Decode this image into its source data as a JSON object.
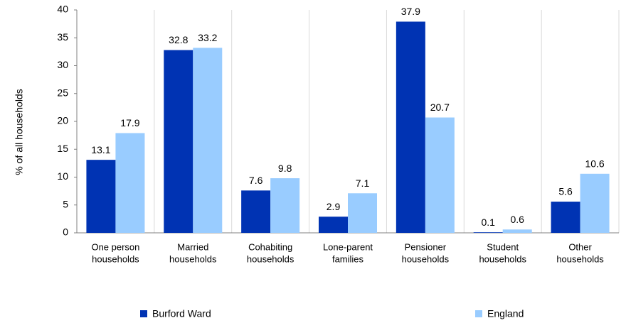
{
  "chart_data": {
    "type": "bar",
    "y_label": "% of all households",
    "categories": [
      [
        "One person",
        "households"
      ],
      [
        "Married",
        "households"
      ],
      [
        "Cohabiting",
        "households"
      ],
      [
        "Lone-parent",
        "families"
      ],
      [
        "Pensioner",
        "households"
      ],
      [
        "Student",
        "households"
      ],
      [
        "Other",
        "households"
      ]
    ],
    "series": [
      {
        "name": "Burford Ward",
        "color": "#0033b3",
        "values": [
          13.1,
          32.8,
          7.6,
          2.9,
          37.9,
          0.1,
          5.6
        ]
      },
      {
        "name": "England",
        "color": "#99ccff",
        "values": [
          17.9,
          33.2,
          9.8,
          7.1,
          20.7,
          0.6,
          10.6
        ]
      }
    ],
    "ylim": [
      0,
      40
    ],
    "yticks": [
      0,
      5,
      10,
      15,
      20,
      25,
      30,
      35,
      40
    ]
  }
}
